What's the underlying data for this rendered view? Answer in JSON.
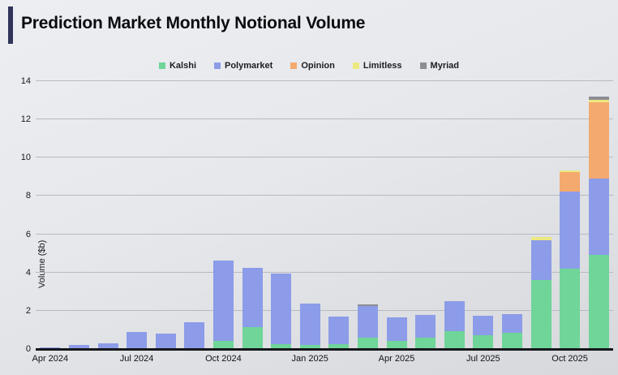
{
  "header": {
    "title": "Prediction Market Monthly Notional Volume"
  },
  "accent_color": "#31345a",
  "chart_data": {
    "type": "bar",
    "stacked": true,
    "title": "Prediction Market Monthly Notional Volume",
    "ylabel": "Volume ($b)",
    "xlabel": "",
    "ylim": [
      0,
      14
    ],
    "y_ticks": [
      0,
      2,
      4,
      6,
      8,
      10,
      12,
      14
    ],
    "grid": "horizontal",
    "legend_position": "top-center",
    "categories": [
      "Apr 2024",
      "May 2024",
      "Jun 2024",
      "Jul 2024",
      "Aug 2024",
      "Sep 2024",
      "Oct 2024",
      "Nov 2024",
      "Dec 2024",
      "Jan 2025",
      "Feb 2025",
      "Mar 2025",
      "Apr 2025",
      "May 2025",
      "Jun 2025",
      "Jul 2025",
      "Aug 2025",
      "Sep 2025",
      "Oct 2025",
      "Nov 2025"
    ],
    "x_tick_labels": [
      "Apr 2024",
      "Jul 2024",
      "Oct 2024",
      "Jan 2025",
      "Apr 2025",
      "Jul 2025",
      "Oct 2025"
    ],
    "x_tick_every": 3,
    "series": [
      {
        "name": "Kalshi",
        "color": "#6fd598",
        "values": [
          0,
          0,
          0,
          0,
          0,
          0,
          0.4,
          1.1,
          0.2,
          0.15,
          0.2,
          0.55,
          0.4,
          0.55,
          0.9,
          0.7,
          0.8,
          3.55,
          4.15,
          4.9
        ]
      },
      {
        "name": "Polymarket",
        "color": "#8c9ce8",
        "values": [
          0.05,
          0.15,
          0.25,
          0.85,
          0.75,
          1.35,
          4.2,
          3.1,
          3.7,
          2.2,
          1.45,
          1.65,
          1.2,
          1.2,
          1.55,
          1.0,
          1.0,
          2.1,
          4.05,
          3.95
        ]
      },
      {
        "name": "Opinion",
        "color": "#f4a96e",
        "values": [
          0,
          0,
          0,
          0,
          0,
          0,
          0,
          0,
          0,
          0,
          0,
          0,
          0,
          0,
          0,
          0,
          0,
          0,
          1.0,
          4.0
        ]
      },
      {
        "name": "Limitless",
        "color": "#ece87f",
        "values": [
          0,
          0,
          0,
          0,
          0,
          0,
          0,
          0,
          0,
          0,
          0,
          0,
          0,
          0,
          0,
          0,
          0,
          0.15,
          0.1,
          0.15
        ]
      },
      {
        "name": "Myriad",
        "color": "#8d8d94",
        "values": [
          0,
          0,
          0,
          0,
          0,
          0,
          0,
          0,
          0,
          0,
          0,
          0.1,
          0,
          0,
          0,
          0,
          0,
          0,
          0,
          0.15
        ]
      }
    ]
  }
}
